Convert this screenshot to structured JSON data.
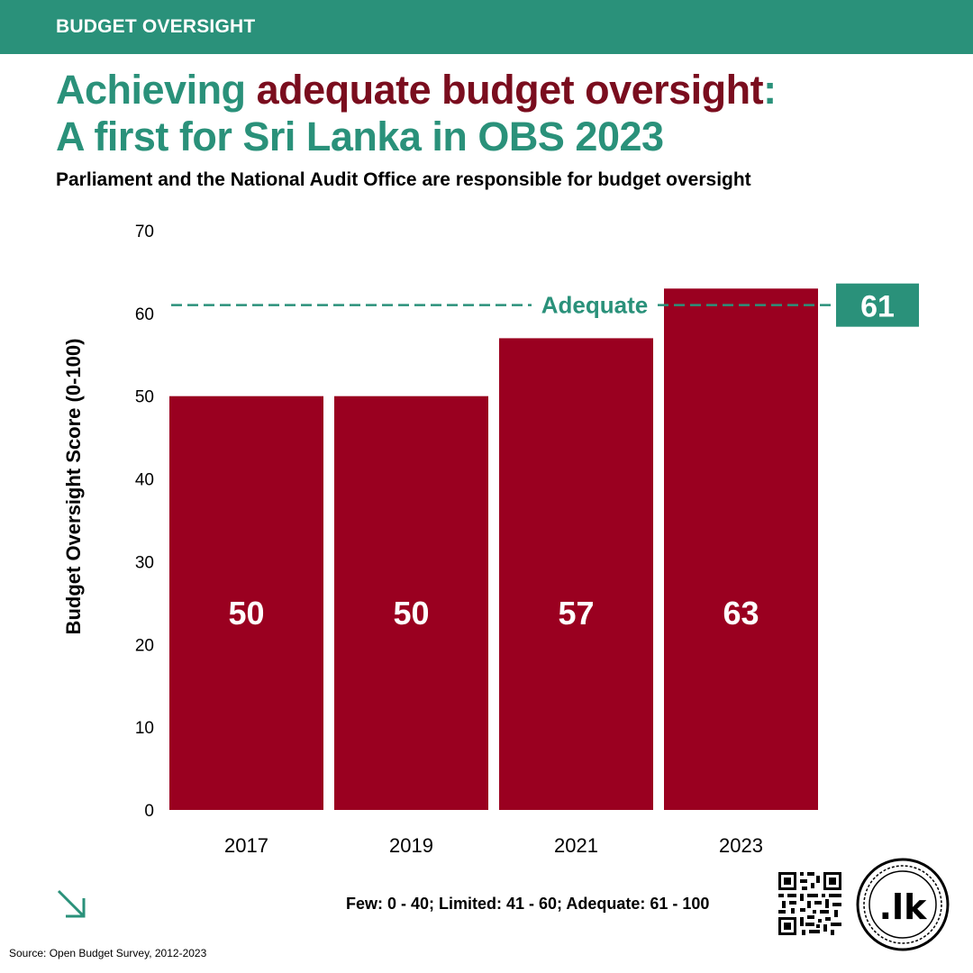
{
  "header": {
    "section_label": "BUDGET OVERSIGHT"
  },
  "title": {
    "part1": "Achieving ",
    "part2": "adequate budget oversight",
    "part3": ":",
    "line2": "A first for Sri Lanka in OBS 2023"
  },
  "subtitle": "Parliament and the National Audit Office are responsible for budget oversight",
  "chart_data": {
    "type": "bar",
    "categories": [
      "2017",
      "2019",
      "2021",
      "2023"
    ],
    "values": [
      50,
      50,
      57,
      63
    ],
    "value_labels": [
      "50",
      "50",
      "57",
      "63"
    ],
    "ylabel": "Budget Oversight Score (0-100)",
    "xlabel": "",
    "ylim": [
      0,
      70
    ],
    "yticks": [
      0,
      10,
      20,
      30,
      40,
      50,
      60,
      70
    ],
    "grid": false,
    "bar_color": "#9a0020",
    "threshold": {
      "value": 61,
      "label": "Adequate",
      "value_label": "61",
      "color": "#2a917a"
    }
  },
  "legend_note": "Few: 0 - 40; Limited: 41 - 60; Adequate: 61 - 100",
  "source": "Source: Open Budget Survey, 2012-2023",
  "icons": {
    "arrow": "arrow-down-right-icon",
    "qr": "qr-code-icon",
    "seal": "dotlk-seal-icon"
  },
  "seal_text": ".lk",
  "colors": {
    "green": "#2a917a",
    "maroon": "#7a0d1e",
    "bar": "#9a0020"
  }
}
